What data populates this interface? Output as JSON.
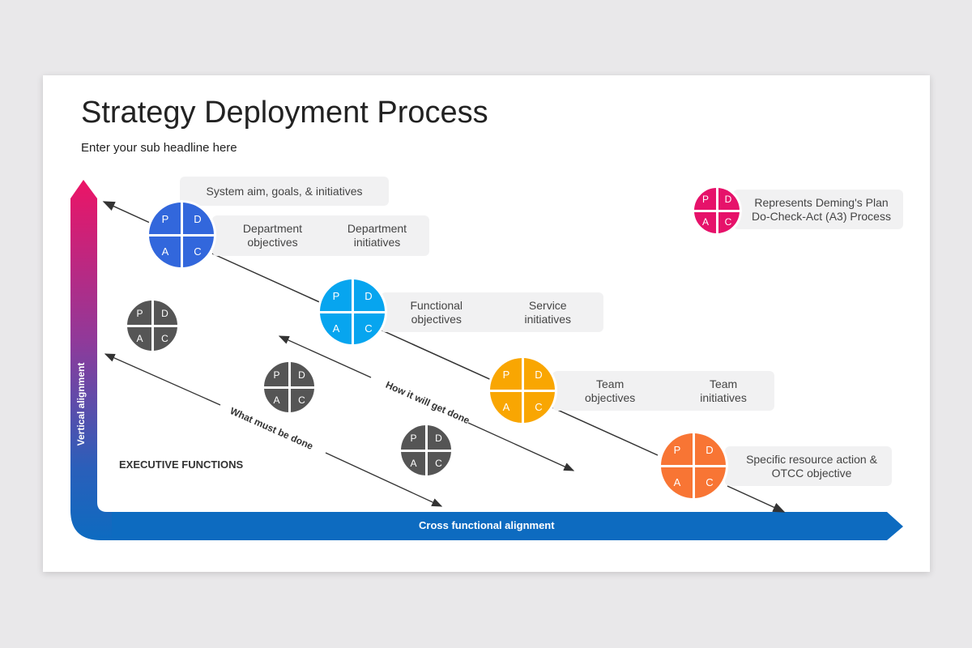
{
  "title": "Strategy Deployment Process",
  "subtitle": "Enter your sub headline here",
  "pdca_letters": [
    "P",
    "D",
    "A",
    "C"
  ],
  "boxes": {
    "system": "System aim, goals, & initiatives",
    "dept_obj": "Department objectives",
    "dept_init": "Department initiatives",
    "func_obj": "Functional objectives",
    "serv_init": "Service initiatives",
    "team_obj": "Team objectives",
    "team_init": "Team initiatives",
    "specific": "Specific resource action & OTCC objective",
    "legend": "Represents Deming's Plan Do-Check-Act (A3) Process"
  },
  "labels": {
    "vertical": "Vertical alignment",
    "horizontal": "Cross functional alignment",
    "executive": "EXECUTIVE  FUNCTIONS",
    "what": "What must be done",
    "how": "How it will get done"
  },
  "colors": {
    "blue": "#3267dc",
    "light_blue": "#07a5ef",
    "orange": "#f9a602",
    "orange_red": "#f87534",
    "pink": "#e6126a",
    "gray": "#555555",
    "axis_top": "#ec1466",
    "axis_bottom": "#0d6bc0"
  }
}
